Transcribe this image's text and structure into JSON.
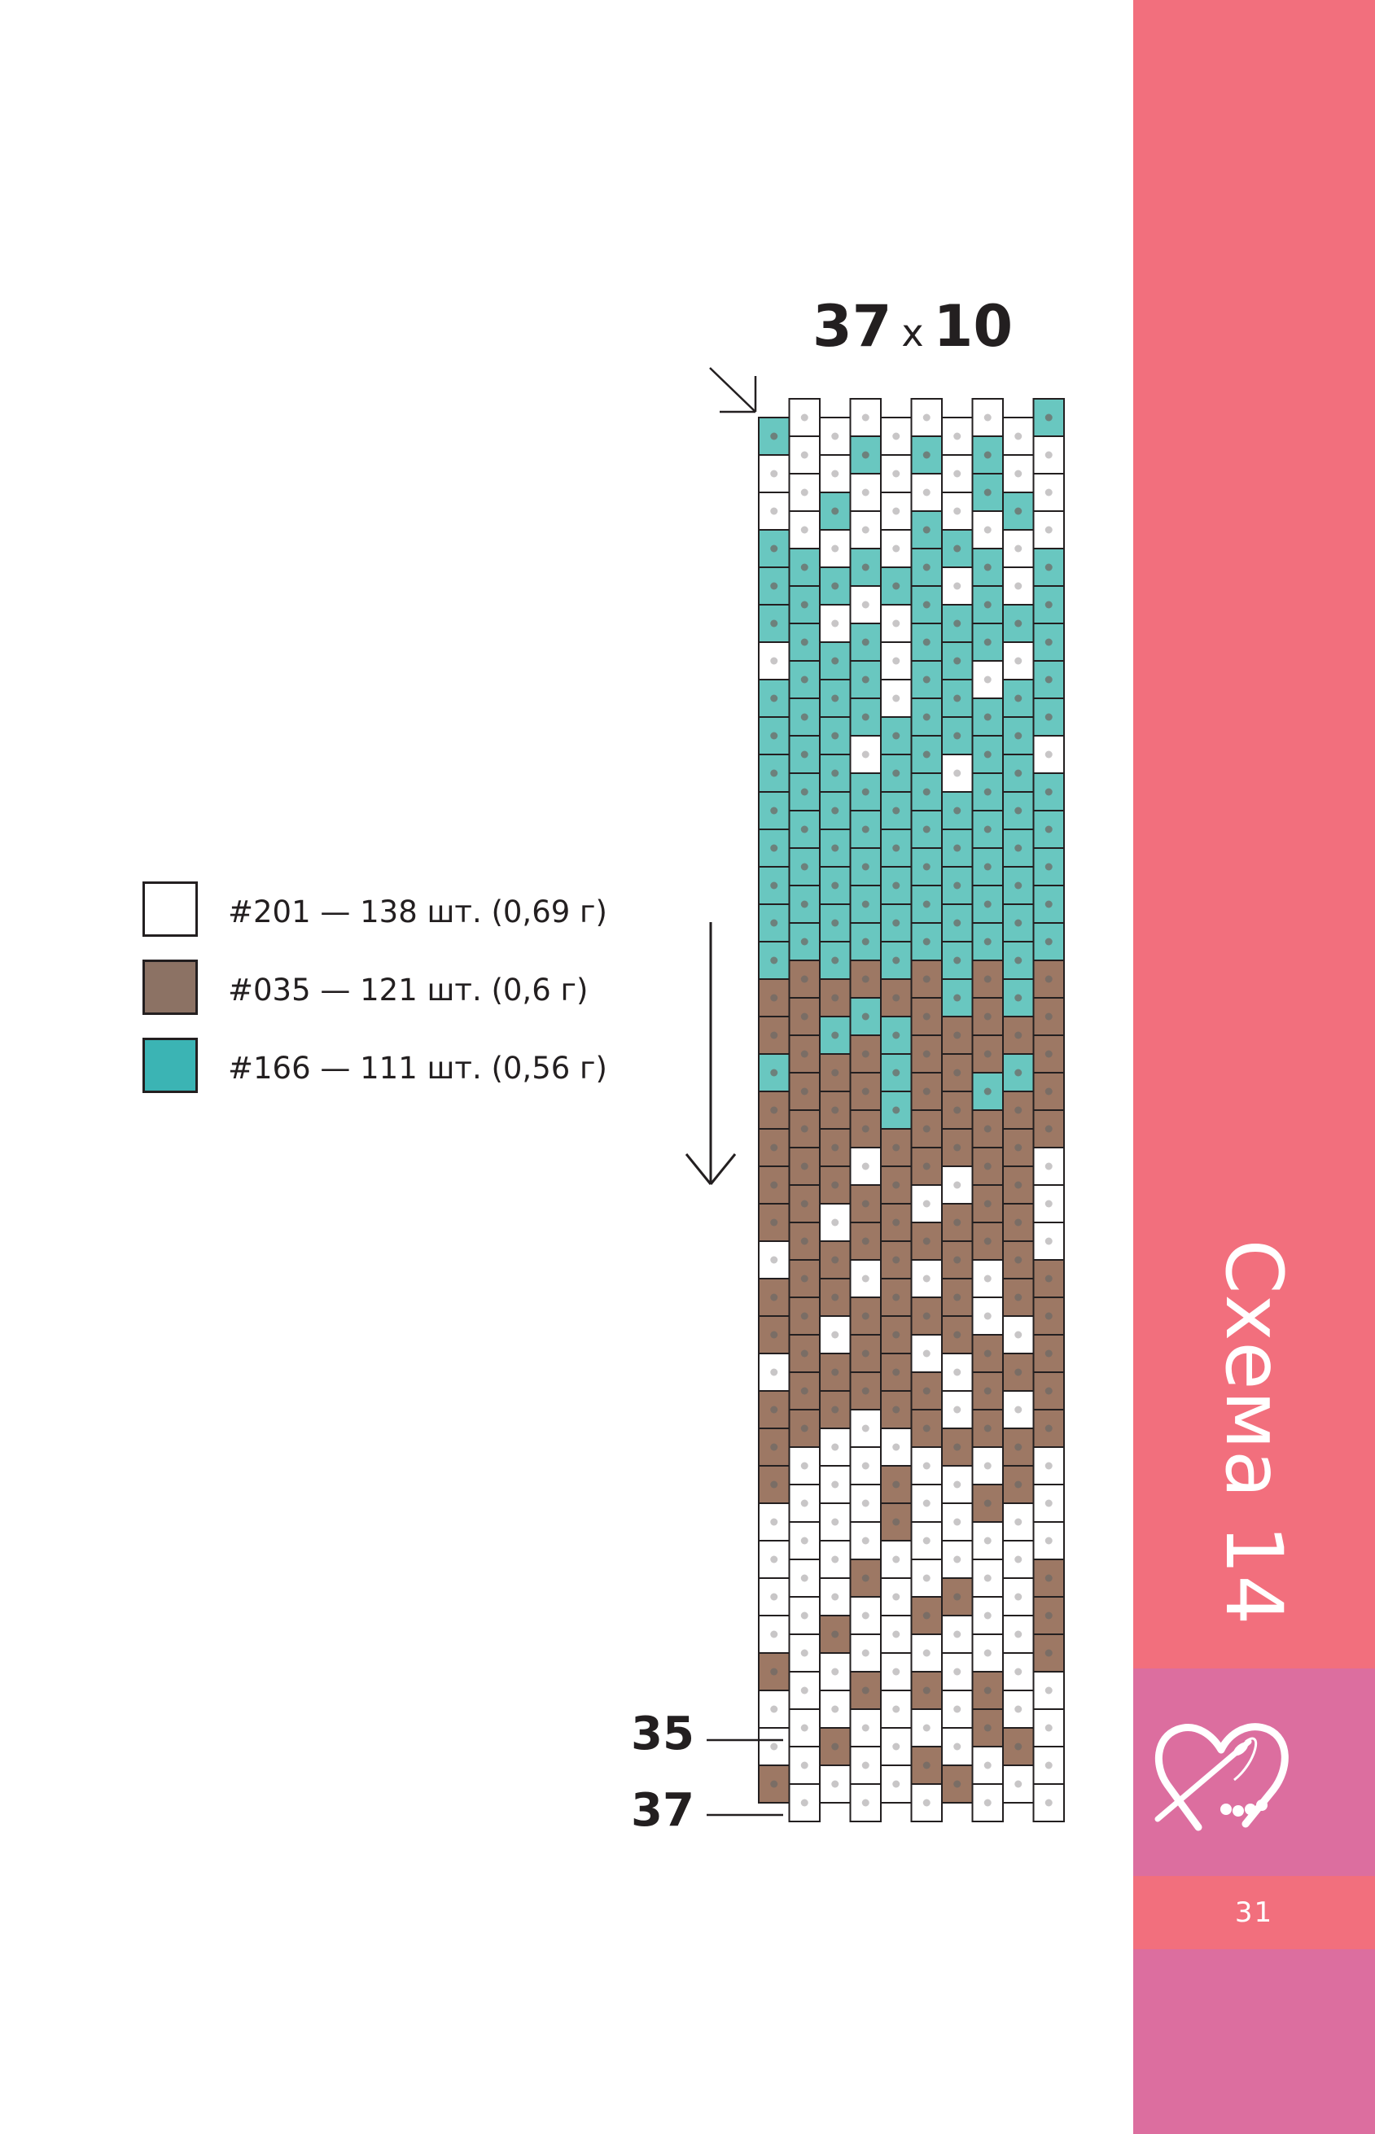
{
  "chart_data": {
    "type": "bead_pattern",
    "dimensions": "37 x 10",
    "width_label": "37",
    "height_label": "10",
    "columns": 10,
    "column_rows": [
      37,
      38,
      37,
      38,
      37,
      38,
      37,
      38,
      37,
      38
    ],
    "row_labels": [
      "35",
      "37"
    ],
    "palette": {
      "W": "#ffffff",
      "B": "#9d7864",
      "T": "#69c7c0"
    },
    "color_zones": [
      {
        "bead_range": [
          0,
          3
        ],
        "main": "W",
        "accent": "T"
      },
      {
        "bead_range": [
          4,
          9
        ],
        "main": "T",
        "accent": "W"
      },
      {
        "bead_range": [
          10,
          14
        ],
        "main": "T",
        "accent": "T"
      },
      {
        "bead_range": [
          15,
          18
        ],
        "main": "B",
        "accent": "T"
      },
      {
        "bead_range": [
          19,
          27
        ],
        "main": "B",
        "accent": "W"
      },
      {
        "bead_range": [
          28,
          37
        ],
        "main": "W",
        "accent": "B"
      }
    ],
    "legend": [
      {
        "code": "#201",
        "color": "#ffffff",
        "text": "#201 — 138 шт. (0,69 г)"
      },
      {
        "code": "#035",
        "color": "#8c7264",
        "text": "#035 — 121 шт. (0,6 г)"
      },
      {
        "code": "#166",
        "color": "#3bb4b4",
        "text": "#166 — 111 шт. (0,56 г)"
      }
    ]
  },
  "sidebar": {
    "title": "Схема  14",
    "page_number": "31",
    "logo_icon": "heart-needle-icon",
    "colors": {
      "coral": "#f26f7d",
      "pink": "#dc6e9f"
    }
  }
}
